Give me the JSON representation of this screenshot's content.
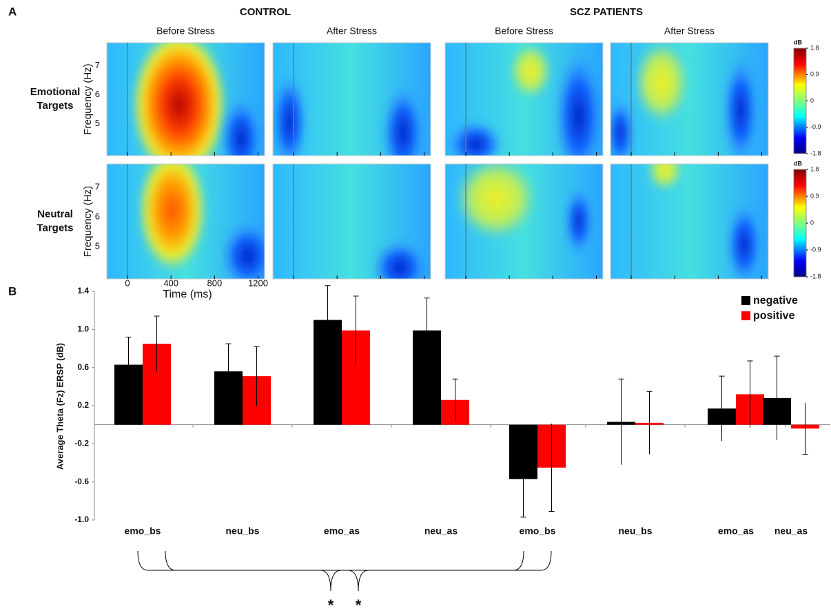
{
  "panel_a": {
    "label": "A",
    "groups": [
      "CONTROL",
      "SCZ PATIENTS"
    ],
    "columns": [
      "Before Stress",
      "After Stress",
      "Before Stress",
      "After Stress"
    ],
    "rows": [
      "Emotional Targets",
      "Neutral Targets"
    ],
    "y_label": "Frequency (Hz)",
    "ylim": [
      3.9,
      7.8
    ],
    "yticks": [
      7,
      6,
      5
    ],
    "x_label": "Time (ms)",
    "xlim": [
      -190,
      1260
    ],
    "xticks": [
      0,
      400,
      800,
      1200
    ],
    "colorbar": {
      "label": "dB",
      "lim": [
        -1.8,
        1.8
      ],
      "ticks": [
        1.8,
        0.9,
        0,
        -0.9,
        -1.8
      ]
    }
  },
  "chart_data": {
    "type": "bar",
    "panel_label": "B",
    "y_label": "Average Theta (Fz) ERSP (dB)",
    "categories": [
      "emo_bs",
      "neu_bs",
      "emo_as",
      "neu_as",
      "emo_bs",
      "neu_bs",
      "emo_as",
      "neu_as"
    ],
    "series": [
      {
        "name": "negative",
        "color": "#000000",
        "values": [
          0.63,
          0.56,
          1.1,
          0.99,
          -0.57,
          0.03,
          0.17,
          0.28
        ],
        "errors": [
          0.29,
          0.29,
          0.36,
          0.34,
          0.4,
          0.45,
          0.34,
          0.44
        ]
      },
      {
        "name": "positive",
        "color": "#ff0000",
        "values": [
          0.85,
          0.51,
          0.99,
          0.26,
          -0.45,
          0.02,
          0.32,
          -0.04
        ],
        "errors": [
          0.29,
          0.31,
          0.36,
          0.22,
          0.46,
          0.33,
          0.35,
          0.27
        ]
      }
    ],
    "ylim": [
      -1.0,
      1.4
    ],
    "yticks": [
      {
        "value": -1.0,
        "label": "-1.0"
      },
      -0.6,
      -0.2,
      0.2,
      0.6,
      {
        "value": 1.0,
        "label": "1.0"
      },
      1.4
    ],
    "legend": "top-right",
    "significance": [
      "*",
      "*"
    ]
  }
}
